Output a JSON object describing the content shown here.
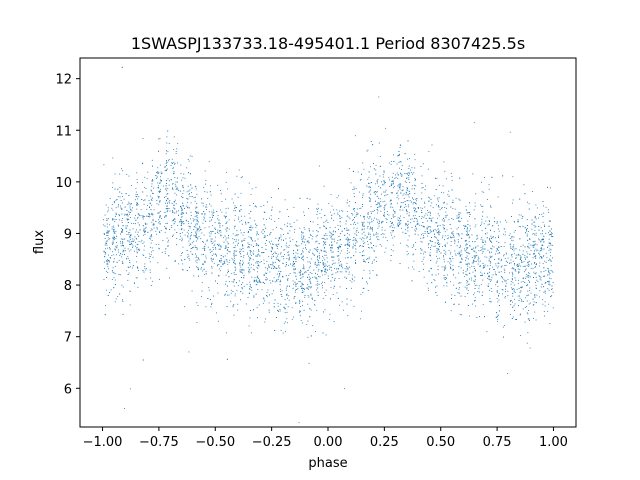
{
  "chart_data": {
    "type": "scatter",
    "title": "1SWASPJ133733.18-495401.1 Period 8307425.5s",
    "xlabel": "phase",
    "ylabel": "flux",
    "xlim": [
      -1.1,
      1.1
    ],
    "ylim": [
      5.25,
      12.4
    ],
    "xticks": [
      -1.0,
      -0.75,
      -0.5,
      -0.25,
      0.0,
      0.25,
      0.5,
      0.75,
      1.0
    ],
    "xtick_labels": [
      "−1.00",
      "−0.75",
      "−0.50",
      "−0.25",
      "0.00",
      "0.25",
      "0.50",
      "0.75",
      "1.00"
    ],
    "yticks": [
      6,
      7,
      8,
      9,
      10,
      11,
      12
    ],
    "ytick_labels": [
      "6",
      "7",
      "8",
      "9",
      "10",
      "11",
      "12"
    ],
    "grid": false,
    "series": [
      {
        "color": "#1f77b4",
        "marker": "dot",
        "description_of_shape": "phase-folded light curve, symmetric about phase 0; flux ~8.3 at phase 0, peaks ~9.8 near phase ±0.3 and -0.7/0.3, minima ~8.3 near -0.8/-0.2/0.2/0.8",
        "points_x": [
          -1.0,
          -0.97,
          -0.94,
          -0.91,
          -0.88,
          -0.85,
          -0.82,
          -0.79,
          -0.76,
          -0.73,
          -0.7,
          -0.67,
          -0.64,
          -0.61,
          -0.58,
          -0.55,
          -0.52,
          -0.49,
          -0.46,
          -0.43,
          -0.4,
          -0.37,
          -0.34,
          -0.31,
          -0.28,
          -0.25,
          -0.22,
          -0.19,
          -0.16,
          -0.13,
          -0.1,
          -0.07,
          -0.04,
          -0.01,
          0.02,
          0.05,
          0.08,
          0.11,
          0.14,
          0.17,
          0.2,
          0.23,
          0.26,
          0.29,
          0.32,
          0.35,
          0.38,
          0.41,
          0.44,
          0.47,
          0.5,
          0.53,
          0.56,
          0.59,
          0.62,
          0.65,
          0.68,
          0.71,
          0.74,
          0.77,
          0.8,
          0.83,
          0.86,
          0.89,
          0.92,
          0.95,
          0.98,
          1.0
        ],
        "points_y": [
          8.7,
          8.8,
          8.9,
          8.9,
          9.0,
          9.1,
          9.2,
          9.3,
          9.4,
          9.6,
          9.7,
          9.6,
          9.4,
          9.2,
          9.0,
          8.9,
          8.8,
          8.8,
          8.7,
          8.7,
          8.6,
          8.6,
          8.5,
          8.5,
          8.5,
          8.4,
          8.4,
          8.3,
          8.3,
          8.3,
          8.4,
          8.4,
          8.5,
          8.5,
          8.6,
          8.7,
          8.8,
          8.9,
          9.0,
          9.2,
          9.3,
          9.5,
          9.6,
          9.7,
          9.8,
          9.7,
          9.5,
          9.3,
          9.1,
          9.0,
          8.9,
          8.8,
          8.8,
          8.7,
          8.7,
          8.6,
          8.6,
          8.5,
          8.5,
          8.4,
          8.4,
          8.3,
          8.4,
          8.4,
          8.5,
          8.6,
          8.6,
          8.7
        ]
      }
    ]
  }
}
